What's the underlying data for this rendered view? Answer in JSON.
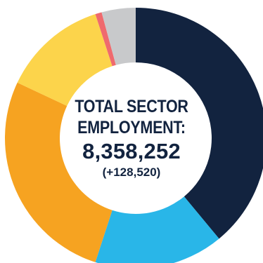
{
  "chart_data": {
    "type": "pie",
    "style": "donut",
    "title_lines": [
      "TOTAL SECTOR",
      "EMPLOYMENT:"
    ],
    "total": "8,358,252",
    "change": "(+128,520)",
    "slices": [
      {
        "color": "#12233f",
        "value": 39.0
      },
      {
        "color": "#29b6e8",
        "value": 16.0
      },
      {
        "color": "#f6a321",
        "value": 27.0
      },
      {
        "color": "#fcd44b",
        "value": 13.0
      },
      {
        "color": "#ef6a6e",
        "value": 0.8
      },
      {
        "color": "#c8c9cb",
        "value": 4.2
      }
    ]
  }
}
